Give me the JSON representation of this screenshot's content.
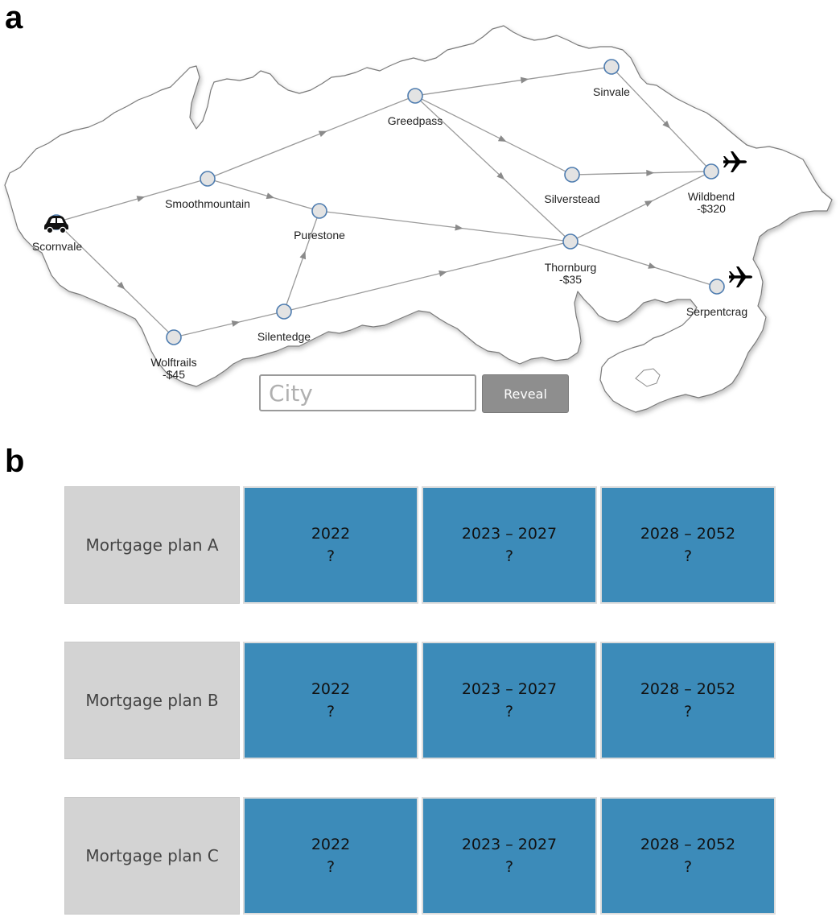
{
  "panels": {
    "a": "a",
    "b": "b"
  },
  "map": {
    "cities": [
      {
        "id": "scornvale",
        "name": "Scornvale",
        "cost": "",
        "icon": "car-icon"
      },
      {
        "id": "smoothmountain",
        "name": "Smoothmountain",
        "cost": ""
      },
      {
        "id": "purestone",
        "name": "Purestone",
        "cost": ""
      },
      {
        "id": "wolftrails",
        "name": "Wolftrails",
        "cost": "-$45"
      },
      {
        "id": "silentedge",
        "name": "Silentedge",
        "cost": ""
      },
      {
        "id": "greedpass",
        "name": "Greedpass",
        "cost": ""
      },
      {
        "id": "sinvale",
        "name": "Sinvale",
        "cost": ""
      },
      {
        "id": "silverstead",
        "name": "Silverstead",
        "cost": ""
      },
      {
        "id": "thornburg",
        "name": "Thornburg",
        "cost": "-$35"
      },
      {
        "id": "wildbend",
        "name": "Wildbend",
        "cost": "-$320",
        "icon": "airplane-icon"
      },
      {
        "id": "serpentcrag",
        "name": "Serpentcrag",
        "cost": "",
        "icon": "airplane-icon"
      }
    ],
    "edges": [
      [
        "scornvale",
        "smoothmountain"
      ],
      [
        "scornvale",
        "wolftrails"
      ],
      [
        "smoothmountain",
        "greedpass"
      ],
      [
        "smoothmountain",
        "purestone"
      ],
      [
        "wolftrails",
        "silentedge"
      ],
      [
        "silentedge",
        "purestone"
      ],
      [
        "silentedge",
        "thornburg"
      ],
      [
        "purestone",
        "thornburg"
      ],
      [
        "greedpass",
        "sinvale"
      ],
      [
        "greedpass",
        "silverstead"
      ],
      [
        "greedpass",
        "thornburg"
      ],
      [
        "sinvale",
        "wildbend"
      ],
      [
        "silverstead",
        "wildbend"
      ],
      [
        "thornburg",
        "wildbend"
      ],
      [
        "thornburg",
        "serpentcrag"
      ]
    ],
    "search": {
      "placeholder": "City",
      "value": ""
    },
    "reveal_label": "Reveal"
  },
  "plans": [
    {
      "label": "Mortgage plan A",
      "cells": [
        {
          "period": "2022",
          "value": "?"
        },
        {
          "period": "2023 – 2027",
          "value": "?"
        },
        {
          "period": "2028 – 2052",
          "value": "?"
        }
      ]
    },
    {
      "label": "Mortgage plan B",
      "cells": [
        {
          "period": "2022",
          "value": "?"
        },
        {
          "period": "2023 – 2027",
          "value": "?"
        },
        {
          "period": "2028 – 2052",
          "value": "?"
        }
      ]
    },
    {
      "label": "Mortgage plan C",
      "cells": [
        {
          "period": "2022",
          "value": "?"
        },
        {
          "period": "2023 – 2027",
          "value": "?"
        },
        {
          "period": "2028 – 2052",
          "value": "?"
        }
      ]
    }
  ],
  "colors": {
    "cell": "#3c8bb9",
    "label_bg": "#d3d3d3",
    "node_fill": "#e3e3e3",
    "node_stroke": "#4f7db0",
    "edge": "#9a9a9a"
  }
}
